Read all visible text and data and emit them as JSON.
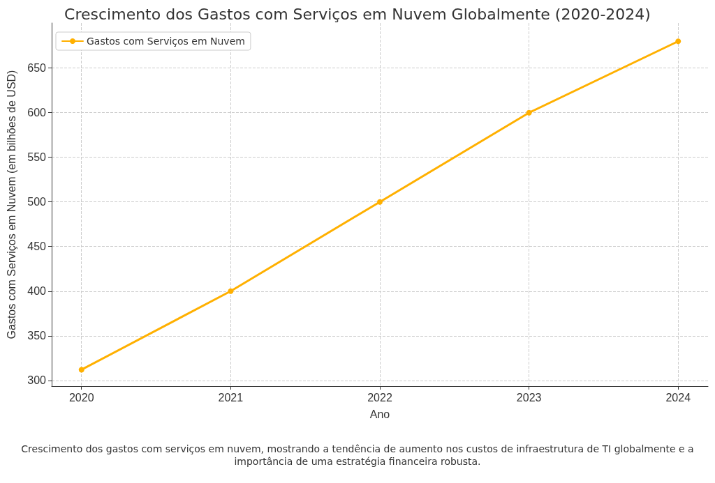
{
  "chart_data": {
    "type": "line",
    "title": "Crescimento dos Gastos com Serviços em Nuvem Globalmente (2020-2024)",
    "xlabel": "Ano",
    "ylabel": "Gastos com Serviços em Nuvem (em bilhões de USD)",
    "x": [
      2020,
      2021,
      2022,
      2023,
      2024
    ],
    "series": [
      {
        "name": "Gastos com Serviços em Nuvem",
        "color": "#ffb000",
        "values": [
          312,
          400,
          500,
          600,
          680
        ]
      }
    ],
    "xlim": [
      2019.8,
      2024.2
    ],
    "xticks": [
      2020,
      2021,
      2022,
      2023,
      2024
    ],
    "ylim": [
      293.6,
      700.5
    ],
    "yticks": [
      300,
      350,
      400,
      450,
      500,
      550,
      600,
      650
    ],
    "grid": true,
    "legend": "top left",
    "marker": "circle",
    "line_style": "solid",
    "annotations": [
      "Crescimento dos gastos com serviços em nuvem, mostrando a tendência de aumento nos custos de infraestrutura de TI globalmente e a importância de uma estratégia financeira robusta."
    ]
  }
}
